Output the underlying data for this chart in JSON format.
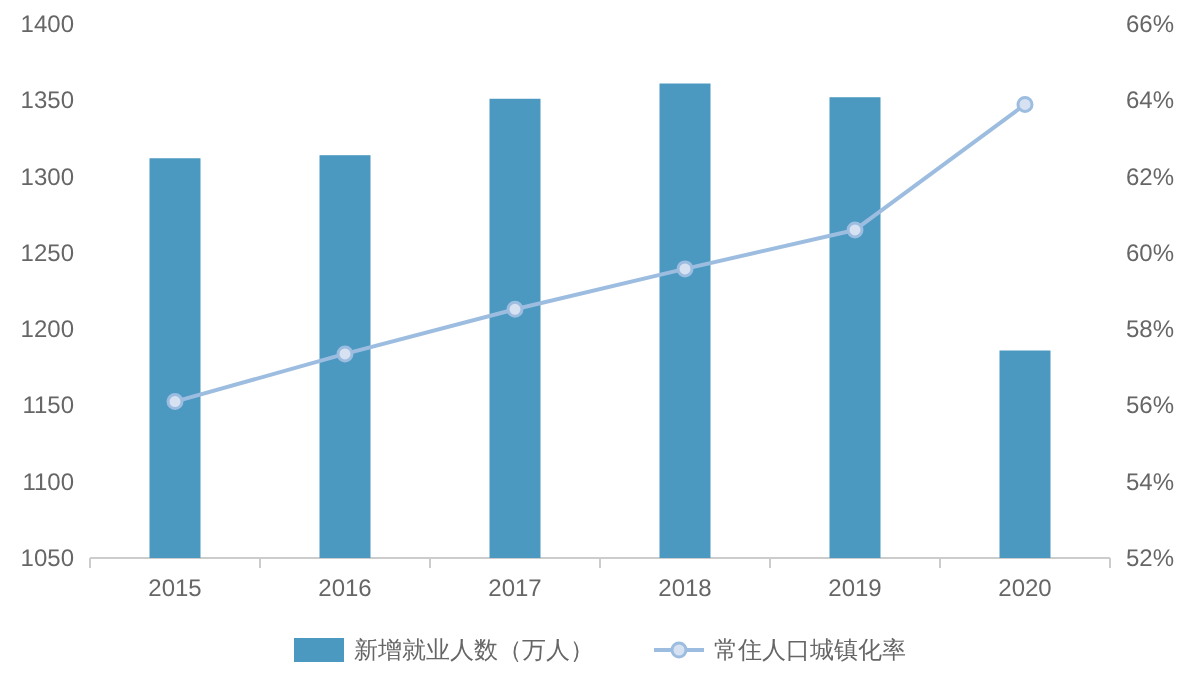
{
  "chart_data": {
    "type": "bar",
    "categories": [
      "2015",
      "2016",
      "2017",
      "2018",
      "2019",
      "2020"
    ],
    "series": [
      {
        "name": "新增就业人数（万人）",
        "color": "#4b98c0",
        "values": [
          1312,
          1314,
          1351,
          1361,
          1352,
          1186
        ]
      },
      {
        "name": "常住人口城镇化率",
        "type": "line",
        "axis": "y2",
        "color": "#9dbde0",
        "marker": "circle",
        "values": [
          56.1,
          57.35,
          58.52,
          59.58,
          60.6,
          63.89
        ]
      }
    ],
    "ylim": [
      1050,
      1400
    ],
    "yticks": [
      1050,
      1100,
      1150,
      1200,
      1250,
      1300,
      1350,
      1400
    ],
    "y2lim": [
      52,
      66
    ],
    "y2ticks": [
      {
        "value": 52,
        "label": "52%"
      },
      {
        "value": 54,
        "label": "54%"
      },
      {
        "value": 56,
        "label": "56%"
      },
      {
        "value": 58,
        "label": "58%"
      },
      {
        "value": 60,
        "label": "60%"
      },
      {
        "value": 62,
        "label": "62%"
      },
      {
        "value": 64,
        "label": "64%"
      },
      {
        "value": 66,
        "label": "66%"
      }
    ],
    "legend": "bottom"
  }
}
